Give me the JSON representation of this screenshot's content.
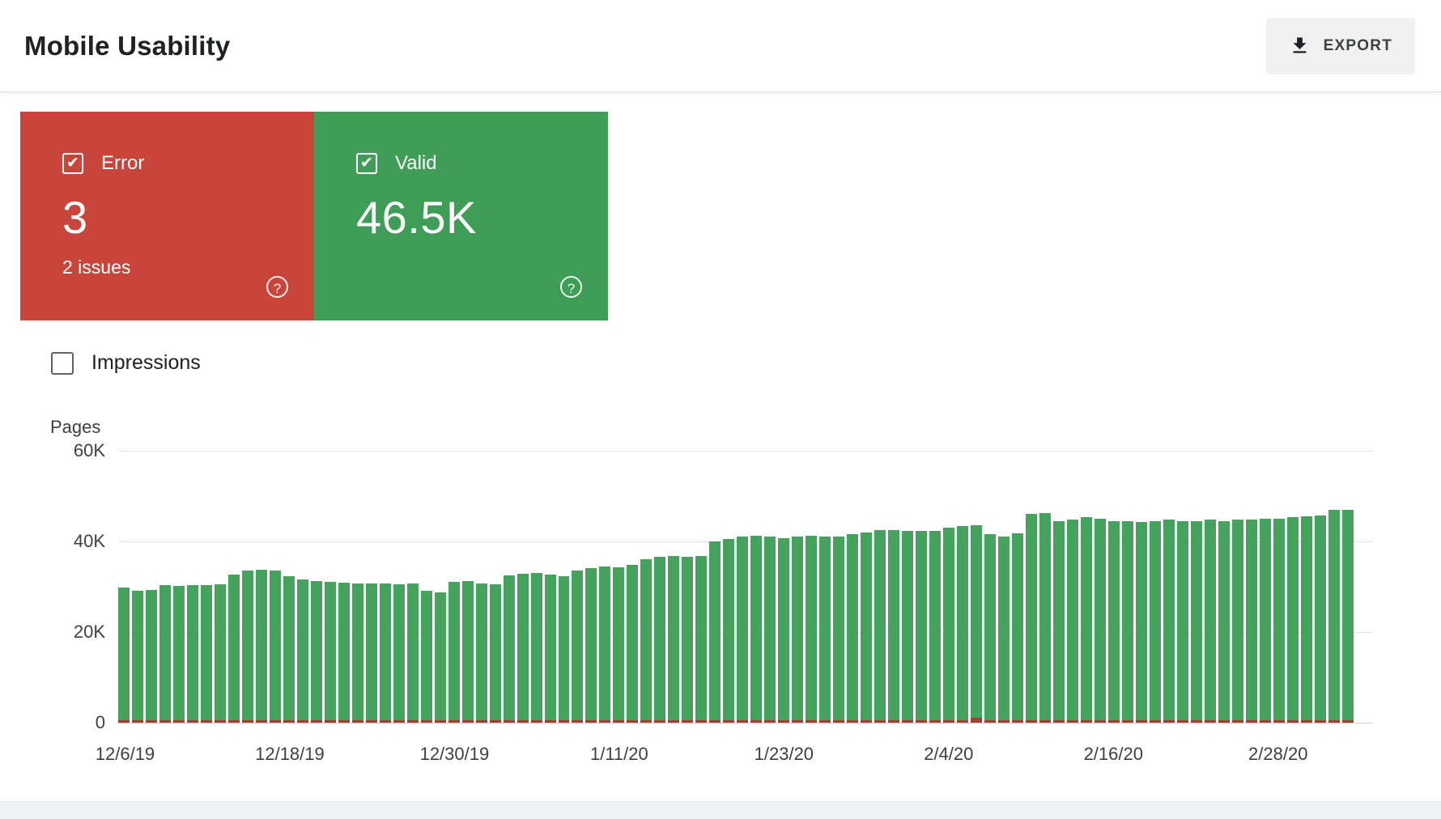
{
  "header": {
    "title": "Mobile Usability",
    "export_label": "EXPORT"
  },
  "cards": {
    "error": {
      "label": "Error",
      "value": "3",
      "sub": "2 issues",
      "color": "#c9443a",
      "checked": true
    },
    "valid": {
      "label": "Valid",
      "value": "46.5K",
      "color": "#3f9d58",
      "checked": true
    }
  },
  "impressions": {
    "label": "Impressions",
    "checked": false
  },
  "chart_data": {
    "type": "bar",
    "stacked": true,
    "title": "",
    "xlabel": "",
    "ylabel": "Pages",
    "ylim": [
      0,
      60000
    ],
    "ytick_labels": [
      "60K",
      "40K",
      "20K",
      "0"
    ],
    "grid": true,
    "legend_position": "none",
    "x_ticks": [
      {
        "index": 0,
        "label": "12/6/19"
      },
      {
        "index": 12,
        "label": "12/18/19"
      },
      {
        "index": 24,
        "label": "12/30/19"
      },
      {
        "index": 36,
        "label": "1/11/20"
      },
      {
        "index": 48,
        "label": "1/23/20"
      },
      {
        "index": 60,
        "label": "2/4/20"
      },
      {
        "index": 72,
        "label": "2/16/20"
      },
      {
        "index": 84,
        "label": "2/28/20"
      }
    ],
    "dates": [
      "12/6/19",
      "12/7/19",
      "12/8/19",
      "12/9/19",
      "12/10/19",
      "12/11/19",
      "12/12/19",
      "12/13/19",
      "12/14/19",
      "12/15/19",
      "12/16/19",
      "12/17/19",
      "12/18/19",
      "12/19/19",
      "12/20/19",
      "12/21/19",
      "12/22/19",
      "12/23/19",
      "12/24/19",
      "12/25/19",
      "12/26/19",
      "12/27/19",
      "12/28/19",
      "12/29/19",
      "12/30/19",
      "12/31/19",
      "1/1/20",
      "1/2/20",
      "1/3/20",
      "1/4/20",
      "1/5/20",
      "1/6/20",
      "1/7/20",
      "1/8/20",
      "1/9/20",
      "1/10/20",
      "1/11/20",
      "1/12/20",
      "1/13/20",
      "1/14/20",
      "1/15/20",
      "1/16/20",
      "1/17/20",
      "1/18/20",
      "1/19/20",
      "1/20/20",
      "1/21/20",
      "1/22/20",
      "1/23/20",
      "1/24/20",
      "1/25/20",
      "1/26/20",
      "1/27/20",
      "1/28/20",
      "1/29/20",
      "1/30/20",
      "1/31/20",
      "2/1/20",
      "2/2/20",
      "2/3/20",
      "2/4/20",
      "2/5/20",
      "2/6/20",
      "2/7/20",
      "2/8/20",
      "2/9/20",
      "2/10/20",
      "2/11/20",
      "2/12/20",
      "2/13/20",
      "2/14/20",
      "2/15/20",
      "2/16/20",
      "2/17/20",
      "2/18/20",
      "2/19/20",
      "2/20/20",
      "2/21/20",
      "2/22/20",
      "2/23/20",
      "2/24/20",
      "2/25/20",
      "2/26/20",
      "2/27/20",
      "2/28/20",
      "2/29/20",
      "3/1/20",
      "3/2/20",
      "3/3/20",
      "3/4/20"
    ],
    "series": [
      {
        "name": "Valid",
        "color": "#46a35e",
        "values": [
          29300,
          28500,
          28800,
          29800,
          29700,
          29800,
          29800,
          30000,
          32200,
          33000,
          33200,
          33000,
          31800,
          31000,
          30800,
          30500,
          30300,
          30200,
          30200,
          30200,
          30000,
          30200,
          28500,
          28200,
          30500,
          30800,
          30200,
          30000,
          32000,
          32300,
          32500,
          32200,
          31800,
          33000,
          33500,
          34000,
          33800,
          34300,
          35500,
          36000,
          36200,
          36000,
          36300,
          39500,
          40000,
          40500,
          40800,
          40500,
          40200,
          40500,
          40800,
          40500,
          40500,
          41000,
          41500,
          42000,
          42000,
          41800,
          41800,
          41800,
          42500,
          42800,
          42500,
          41000,
          40500,
          41200,
          45500,
          45800,
          44000,
          44300,
          44800,
          44500,
          44000,
          44000,
          43800,
          44000,
          44200,
          44000,
          44000,
          44200,
          44000,
          44300,
          44300,
          44500,
          44500,
          44800,
          45000,
          45200,
          46500,
          46500
        ]
      },
      {
        "name": "Error",
        "color": "#a63d33",
        "values": [
          3,
          3,
          3,
          3,
          3,
          3,
          3,
          3,
          3,
          3,
          3,
          3,
          3,
          3,
          3,
          3,
          3,
          3,
          3,
          3,
          3,
          3,
          3,
          3,
          3,
          3,
          3,
          3,
          3,
          3,
          3,
          3,
          3,
          3,
          3,
          3,
          3,
          3,
          3,
          3,
          3,
          3,
          3,
          3,
          3,
          3,
          3,
          3,
          3,
          3,
          3,
          3,
          3,
          3,
          3,
          3,
          3,
          3,
          3,
          3,
          3,
          300,
          1000,
          400,
          3,
          3,
          3,
          3,
          3,
          3,
          3,
          3,
          3,
          3,
          3,
          3,
          3,
          3,
          3,
          3,
          3,
          3,
          3,
          3,
          3,
          3,
          3,
          3,
          3,
          3
        ]
      }
    ]
  }
}
